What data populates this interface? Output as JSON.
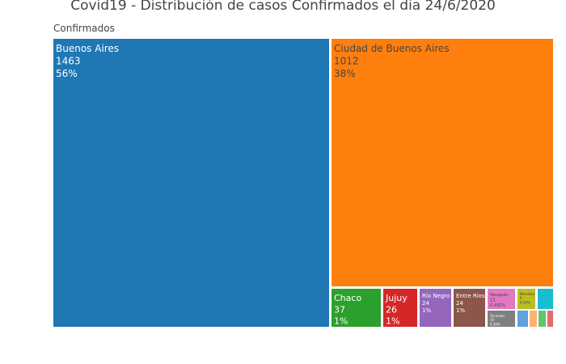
{
  "chart_data": {
    "type": "treemap",
    "title": "Covid19 - Distribución de casos Confirmados el dia 24/6/2020",
    "root_label": "Confirmados",
    "items": [
      {
        "label": "Buenos Aires",
        "value": 1463,
        "pct": "56%",
        "color": "#1f77b4",
        "text_color": "#ffffff"
      },
      {
        "label": "Ciudad de Buenos Aires",
        "value": 1012,
        "pct": "38%",
        "color": "#ff7f0e",
        "text_color": "#444444"
      },
      {
        "label": "Chaco",
        "value": 37,
        "pct": "1%",
        "color": "#2ca02c",
        "text_color": "#ffffff"
      },
      {
        "label": "Jujuy",
        "value": 26,
        "pct": "1%",
        "color": "#d62728",
        "text_color": "#ffffff"
      },
      {
        "label": "Río Negro",
        "value": 24,
        "pct": "1%",
        "color": "#9467bd",
        "text_color": "#ffffff"
      },
      {
        "label": "Entre Ríos",
        "value": 24,
        "pct": "1%",
        "color": "#8c564b",
        "text_color": "#ffffff"
      },
      {
        "label": "Neuquén",
        "value": 13,
        "pct": "0.492%",
        "color": "#e377c2",
        "text_color": "#444444"
      },
      {
        "label": "Tucumán",
        "value": 10,
        "pct": "0.38%",
        "color": "#7f7f7f",
        "text_color": "#ffffff"
      },
      {
        "label": "Mendoza",
        "value": 9,
        "pct": "0.34%",
        "color": "#bcbd22",
        "text_color": "#444444"
      },
      {
        "label": "",
        "value": 6,
        "pct": "",
        "color": "#17becf",
        "text_color": "#444444"
      },
      {
        "label": "",
        "value": 4,
        "pct": "",
        "color": "#5fa2dd",
        "text_color": "#444444"
      },
      {
        "label": "",
        "value": 3,
        "pct": "",
        "color": "#ffb36e",
        "text_color": "#444444"
      },
      {
        "label": "",
        "value": 2,
        "pct": "",
        "color": "#61c56e",
        "text_color": "#444444"
      },
      {
        "label": "",
        "value": 2,
        "pct": "",
        "color": "#e36d6d",
        "text_color": "#444444"
      }
    ]
  }
}
